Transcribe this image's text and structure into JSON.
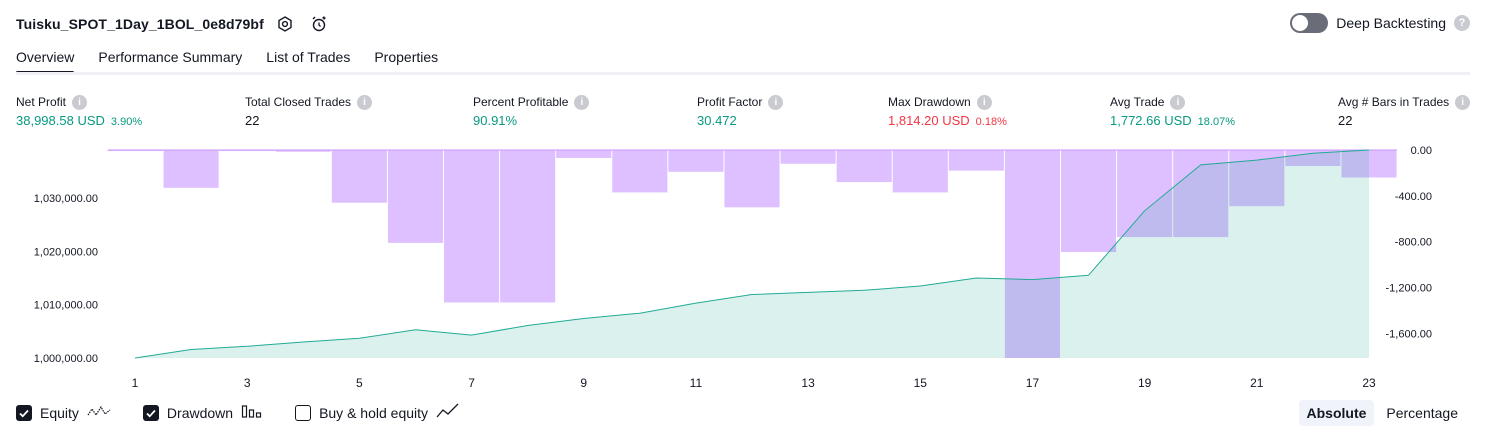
{
  "header": {
    "strategy_name": "Tuisku_SPOT_1Day_1BOL_0e8d79bf",
    "deep_backtesting_label": "Deep Backtesting",
    "deep_backtesting_enabled": false
  },
  "tabs": [
    {
      "label": "Overview",
      "active": true
    },
    {
      "label": "Performance Summary",
      "active": false
    },
    {
      "label": "List of Trades",
      "active": false
    },
    {
      "label": "Properties",
      "active": false
    }
  ],
  "metrics": {
    "net_profit": {
      "label": "Net Profit",
      "value": "38,998.58 USD",
      "sub": "3.90%"
    },
    "total_closed_trades": {
      "label": "Total Closed Trades",
      "value": "22"
    },
    "percent_profitable": {
      "label": "Percent Profitable",
      "value": "90.91%"
    },
    "profit_factor": {
      "label": "Profit Factor",
      "value": "30.472"
    },
    "max_drawdown": {
      "label": "Max Drawdown",
      "value": "1,814.20 USD",
      "sub": "0.18%"
    },
    "avg_trade": {
      "label": "Avg Trade",
      "value": "1,772.66 USD",
      "sub": "18.07%"
    },
    "avg_bars": {
      "label": "Avg # Bars in Trades",
      "value": "22"
    }
  },
  "chart_data": {
    "type": "line",
    "x": [
      1,
      2,
      3,
      4,
      5,
      6,
      7,
      8,
      9,
      10,
      11,
      12,
      13,
      14,
      15,
      16,
      17,
      18,
      19,
      20,
      21,
      22,
      23
    ],
    "x_tick_labels": [
      "1",
      "3",
      "5",
      "7",
      "9",
      "11",
      "13",
      "15",
      "17",
      "19",
      "21",
      "23"
    ],
    "x_tick_values": [
      1,
      3,
      5,
      7,
      9,
      11,
      13,
      15,
      17,
      19,
      21,
      23
    ],
    "series": [
      {
        "name": "Equity",
        "kind": "area",
        "axis": "left",
        "values": [
          1000000,
          1001600,
          1002200,
          1003000,
          1003700,
          1005300,
          1004300,
          1006100,
          1007400,
          1008400,
          1010300,
          1011900,
          1012300,
          1012700,
          1013500,
          1015000,
          1014700,
          1015500,
          1027600,
          1036200,
          1037100,
          1038400,
          1038999
        ]
      },
      {
        "name": "Drawdown",
        "kind": "bar",
        "axis": "right",
        "values": [
          -5,
          -330,
          -5,
          -15,
          -460,
          -810,
          -1330,
          -1330,
          -70,
          -370,
          -190,
          -500,
          -120,
          -280,
          -370,
          -180,
          -1814,
          -890,
          -760,
          -760,
          -490,
          -140,
          -240
        ]
      }
    ],
    "left_axis": {
      "min": 1000000,
      "max": 1038999,
      "ticks": [
        1000000,
        1010000,
        1020000,
        1030000
      ],
      "tick_labels": [
        "1,000,000.00",
        "1,010,000.00",
        "1,020,000.00",
        "1,030,000.00"
      ]
    },
    "right_axis": {
      "min": -1814.2,
      "max": 0,
      "ticks": [
        0,
        -400,
        -800,
        -1200,
        -1600
      ],
      "tick_labels": [
        "0.00",
        "-400.00",
        "-800.00",
        "-1,200.00",
        "-1,600.00"
      ]
    },
    "colors": {
      "equity_line": "#22ab94",
      "equity_fill": "#22ab94",
      "drawdown_bar": "#c895ff"
    }
  },
  "legend": {
    "equity": {
      "label": "Equity",
      "checked": true
    },
    "drawdown": {
      "label": "Drawdown",
      "checked": true
    },
    "buy_hold": {
      "label": "Buy & hold equity",
      "checked": false
    }
  },
  "mode": {
    "absolute": "Absolute",
    "percentage": "Percentage",
    "selected": "Absolute"
  }
}
